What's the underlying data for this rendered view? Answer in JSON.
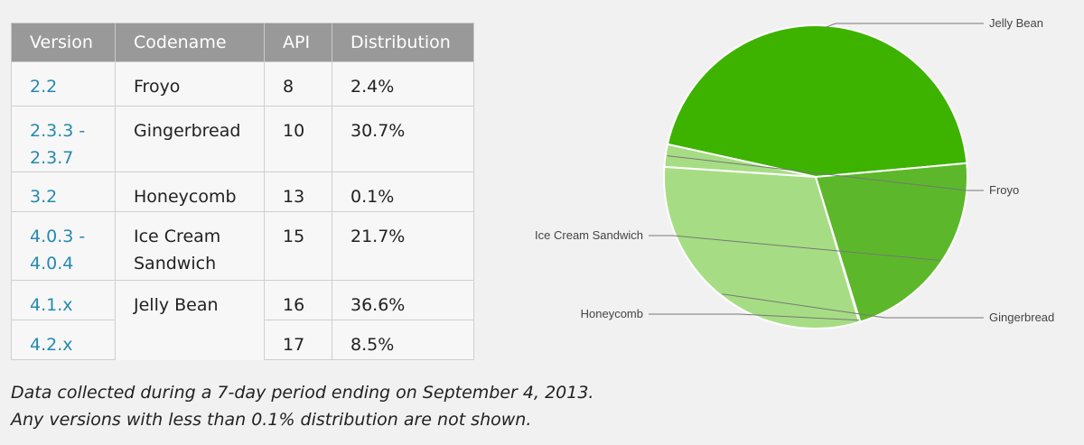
{
  "table": {
    "headers": [
      "Version",
      "Codename",
      "API",
      "Distribution"
    ],
    "rows": [
      {
        "version": "2.2",
        "codename": "Froyo",
        "api": "8",
        "distribution": "2.4%"
      },
      {
        "version": "2.3.3 - 2.3.7",
        "codename": "Gingerbread",
        "api": "10",
        "distribution": "30.7%"
      },
      {
        "version": "3.2",
        "codename": "Honeycomb",
        "api": "13",
        "distribution": "0.1%"
      },
      {
        "version": "4.0.3 - 4.0.4",
        "codename": "Ice Cream Sandwich",
        "api": "15",
        "distribution": "21.7%"
      },
      {
        "version": "4.1.x",
        "codename": "Jelly Bean",
        "api": "16",
        "distribution": "36.6%"
      },
      {
        "version": "4.2.x",
        "codename": "",
        "api": "17",
        "distribution": "8.5%"
      }
    ]
  },
  "footnote": {
    "line1": "Data collected during a 7-day period ending on September 4, 2013.",
    "line2": "Any versions with less than 0.1% distribution are not shown."
  },
  "chart_data": {
    "type": "pie",
    "categories": [
      "Jelly Bean",
      "Froyo",
      "Gingerbread",
      "Honeycomb",
      "Ice Cream Sandwich"
    ],
    "values": [
      45.1,
      2.4,
      30.7,
      0.1,
      21.7
    ],
    "colors": [
      "#3db300",
      "#a6dd84",
      "#a6dd84",
      "#5cb82a",
      "#5cb82a"
    ],
    "title": "",
    "legend": "leader-line labels"
  }
}
